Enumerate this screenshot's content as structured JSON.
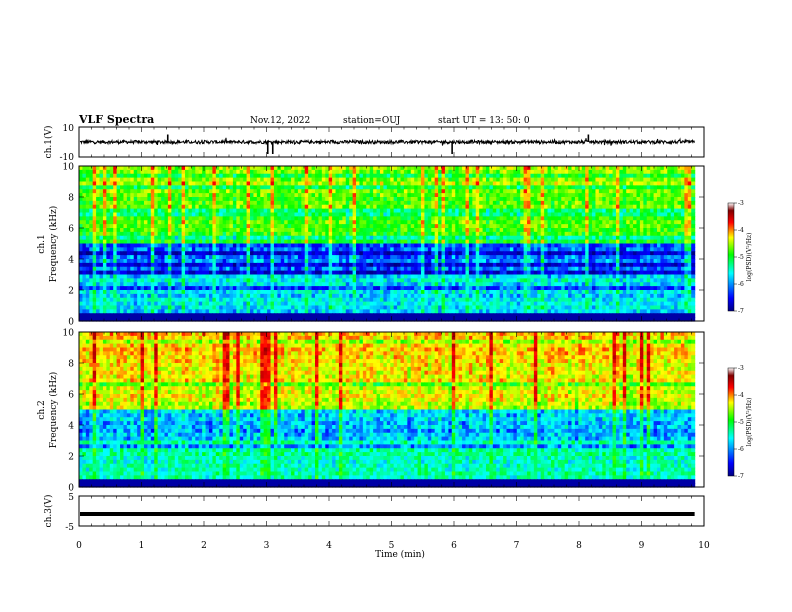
{
  "header": {
    "title": "VLF Spectra",
    "date": "Nov.12, 2022",
    "station": "station=OUJ",
    "start": "start  UT  =   13: 50: 0"
  },
  "colors": {
    "wave": "#000000",
    "colormap": [
      "#000080",
      "#0000ff",
      "#00ffff",
      "#00ff00",
      "#ffff00",
      "#ff0000",
      "#800000",
      "#ffffff"
    ]
  },
  "chart_data": [
    {
      "type": "line",
      "panel": "ch1-waveform",
      "ylabel": "ch.1(V)",
      "ylim": [
        -10,
        10
      ],
      "yticks": [
        "10",
        "-10"
      ],
      "baseline": 0,
      "spikes_min": [
        1.42,
        3.02,
        3.1,
        5.97,
        8.15
      ],
      "spike_values": [
        5,
        -8,
        -8,
        -8,
        5
      ]
    },
    {
      "type": "heatmap",
      "panel": "ch1-spectrogram",
      "ylabel": "ch.1",
      "ylabel2": "Frequency (kHz)",
      "ylim": [
        0,
        10
      ],
      "yticks": [
        "0",
        "2",
        "4",
        "6",
        "8",
        "10"
      ],
      "colorbar": {
        "label": "log(PSD)(V²/Hz)",
        "ticks": [
          "-3",
          "-4",
          "-5",
          "-6",
          "-7"
        ],
        "range": [
          -7,
          -3
        ]
      }
    },
    {
      "type": "heatmap",
      "panel": "ch2-spectrogram",
      "ylabel": "ch.2",
      "ylabel2": "Frequency (kHz)",
      "ylim": [
        0,
        10
      ],
      "yticks": [
        "0",
        "2",
        "4",
        "6",
        "8",
        "10"
      ],
      "colorbar": {
        "label": "log(PSD)(V²/Hz)",
        "ticks": [
          "-3",
          "-4",
          "-5",
          "-6",
          "-7"
        ],
        "range": [
          -7,
          -3
        ]
      }
    },
    {
      "type": "line",
      "panel": "ch3-waveform",
      "ylabel": "ch.3(V)",
      "ylim": [
        -5,
        5
      ],
      "yticks": [
        "5",
        "-5"
      ],
      "baseline": -1
    }
  ],
  "xaxis": {
    "label": "Time  (min)",
    "ticks": [
      "0",
      "1",
      "2",
      "3",
      "4",
      "5",
      "6",
      "7",
      "8",
      "9",
      "10"
    ],
    "xlim": [
      0,
      10
    ],
    "data_end_min": 9.85
  }
}
